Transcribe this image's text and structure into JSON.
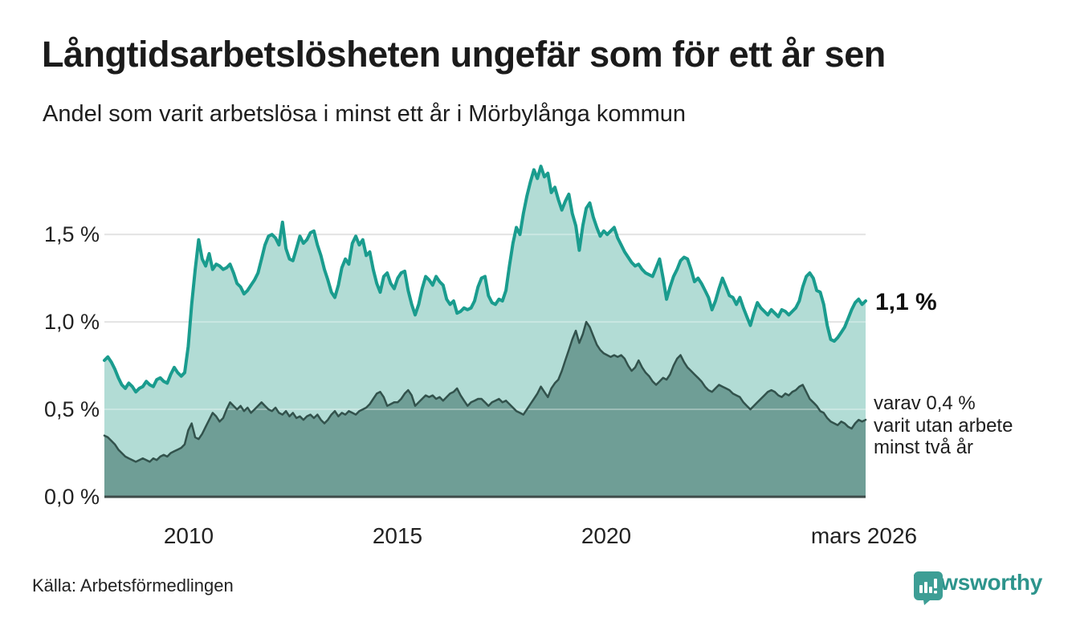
{
  "header": {
    "title": "Långtidsarbetslösheten ungefär som för ett år sen",
    "subtitle": "Andel som varit arbetslösa i minst ett år i Mörbylånga kommun"
  },
  "chart_data": {
    "type": "area",
    "title": "Långtidsarbetslösheten ungefär som för ett år sen",
    "subtitle": "Andel som varit arbetslösa i minst ett år i Mörbylånga kommun",
    "unit": "%",
    "x_start": 2008.042,
    "x_step": 0.08333,
    "xlim": [
      2008.042,
      2026.208
    ],
    "ylim": [
      0,
      1.9
    ],
    "grid": "horizontal",
    "legend_position": "none",
    "yticks": [
      {
        "value": 0.0,
        "label": "0,0 %"
      },
      {
        "value": 0.5,
        "label": "0,5 %"
      },
      {
        "value": 1.0,
        "label": "1,0 %"
      },
      {
        "value": 1.5,
        "label": "1,5 %"
      }
    ],
    "xticks": [
      {
        "value": 2010,
        "label": "2010"
      },
      {
        "value": 2015,
        "label": "2015"
      },
      {
        "value": 2020,
        "label": "2020"
      },
      {
        "value": 2026.1,
        "label": "mars 2026"
      }
    ],
    "series": [
      {
        "name": "Andel arbetslösa minst ett år",
        "line_color": "#1a9c8e",
        "fill_color": "#b2dcd5",
        "line_width": 4,
        "last_value_label": "1,1 %",
        "values": [
          0.78,
          0.8,
          0.77,
          0.73,
          0.68,
          0.64,
          0.62,
          0.65,
          0.63,
          0.6,
          0.62,
          0.63,
          0.66,
          0.64,
          0.63,
          0.67,
          0.68,
          0.66,
          0.65,
          0.7,
          0.74,
          0.71,
          0.69,
          0.71,
          0.86,
          1.1,
          1.3,
          1.47,
          1.36,
          1.32,
          1.39,
          1.3,
          1.33,
          1.32,
          1.3,
          1.31,
          1.33,
          1.28,
          1.22,
          1.2,
          1.16,
          1.18,
          1.21,
          1.24,
          1.28,
          1.36,
          1.44,
          1.49,
          1.5,
          1.48,
          1.44,
          1.57,
          1.42,
          1.36,
          1.35,
          1.42,
          1.49,
          1.45,
          1.47,
          1.51,
          1.52,
          1.44,
          1.38,
          1.3,
          1.24,
          1.17,
          1.14,
          1.21,
          1.31,
          1.36,
          1.33,
          1.45,
          1.49,
          1.44,
          1.47,
          1.38,
          1.4,
          1.3,
          1.22,
          1.17,
          1.26,
          1.28,
          1.22,
          1.19,
          1.25,
          1.28,
          1.29,
          1.18,
          1.1,
          1.04,
          1.1,
          1.19,
          1.26,
          1.24,
          1.21,
          1.26,
          1.23,
          1.21,
          1.13,
          1.1,
          1.12,
          1.05,
          1.06,
          1.08,
          1.07,
          1.08,
          1.12,
          1.2,
          1.25,
          1.26,
          1.15,
          1.11,
          1.1,
          1.13,
          1.12,
          1.18,
          1.32,
          1.45,
          1.54,
          1.5,
          1.62,
          1.72,
          1.8,
          1.87,
          1.82,
          1.89,
          1.83,
          1.85,
          1.74,
          1.77,
          1.7,
          1.64,
          1.69,
          1.73,
          1.62,
          1.55,
          1.41,
          1.55,
          1.65,
          1.68,
          1.6,
          1.54,
          1.49,
          1.52,
          1.5,
          1.52,
          1.54,
          1.48,
          1.44,
          1.4,
          1.37,
          1.34,
          1.32,
          1.33,
          1.3,
          1.28,
          1.27,
          1.26,
          1.31,
          1.36,
          1.25,
          1.13,
          1.2,
          1.26,
          1.3,
          1.35,
          1.37,
          1.36,
          1.3,
          1.23,
          1.25,
          1.22,
          1.18,
          1.14,
          1.07,
          1.12,
          1.19,
          1.25,
          1.2,
          1.15,
          1.14,
          1.1,
          1.14,
          1.08,
          1.03,
          0.98,
          1.05,
          1.11,
          1.08,
          1.06,
          1.04,
          1.07,
          1.05,
          1.03,
          1.07,
          1.06,
          1.04,
          1.06,
          1.08,
          1.12,
          1.2,
          1.26,
          1.28,
          1.25,
          1.18,
          1.17,
          1.1,
          0.98,
          0.9,
          0.89,
          0.91,
          0.94,
          0.97,
          1.02,
          1.07,
          1.11,
          1.13,
          1.1,
          1.12
        ]
      },
      {
        "name": "varav utan arbete minst två år",
        "line_color": "#32524c",
        "fill_color": "#6f9e96",
        "line_width": 2.5,
        "last_value_label": "varav 0,4 % varit utan arbete minst två år",
        "values": [
          0.35,
          0.34,
          0.32,
          0.3,
          0.27,
          0.25,
          0.23,
          0.22,
          0.21,
          0.2,
          0.21,
          0.22,
          0.21,
          0.2,
          0.22,
          0.21,
          0.23,
          0.24,
          0.23,
          0.25,
          0.26,
          0.27,
          0.28,
          0.3,
          0.38,
          0.42,
          0.34,
          0.33,
          0.36,
          0.4,
          0.44,
          0.48,
          0.46,
          0.43,
          0.45,
          0.5,
          0.54,
          0.52,
          0.5,
          0.52,
          0.49,
          0.51,
          0.48,
          0.5,
          0.52,
          0.54,
          0.52,
          0.5,
          0.49,
          0.51,
          0.48,
          0.47,
          0.49,
          0.46,
          0.48,
          0.45,
          0.46,
          0.44,
          0.46,
          0.47,
          0.45,
          0.47,
          0.44,
          0.42,
          0.44,
          0.47,
          0.49,
          0.46,
          0.48,
          0.47,
          0.49,
          0.48,
          0.47,
          0.49,
          0.5,
          0.51,
          0.53,
          0.56,
          0.59,
          0.6,
          0.57,
          0.52,
          0.53,
          0.54,
          0.54,
          0.56,
          0.59,
          0.61,
          0.58,
          0.52,
          0.54,
          0.56,
          0.58,
          0.57,
          0.58,
          0.56,
          0.57,
          0.55,
          0.57,
          0.59,
          0.6,
          0.62,
          0.58,
          0.55,
          0.52,
          0.54,
          0.55,
          0.56,
          0.56,
          0.54,
          0.52,
          0.54,
          0.55,
          0.56,
          0.54,
          0.55,
          0.53,
          0.51,
          0.49,
          0.48,
          0.47,
          0.5,
          0.53,
          0.56,
          0.59,
          0.63,
          0.6,
          0.57,
          0.62,
          0.65,
          0.67,
          0.72,
          0.78,
          0.84,
          0.9,
          0.95,
          0.88,
          0.93,
          1.0,
          0.97,
          0.92,
          0.87,
          0.84,
          0.82,
          0.81,
          0.8,
          0.81,
          0.8,
          0.81,
          0.79,
          0.75,
          0.72,
          0.74,
          0.78,
          0.74,
          0.71,
          0.69,
          0.66,
          0.64,
          0.66,
          0.68,
          0.67,
          0.7,
          0.75,
          0.79,
          0.81,
          0.77,
          0.74,
          0.72,
          0.7,
          0.68,
          0.66,
          0.63,
          0.61,
          0.6,
          0.62,
          0.64,
          0.63,
          0.62,
          0.61,
          0.59,
          0.58,
          0.57,
          0.54,
          0.52,
          0.5,
          0.52,
          0.54,
          0.56,
          0.58,
          0.6,
          0.61,
          0.6,
          0.58,
          0.57,
          0.59,
          0.58,
          0.6,
          0.61,
          0.63,
          0.64,
          0.6,
          0.56,
          0.54,
          0.52,
          0.49,
          0.48,
          0.45,
          0.43,
          0.42,
          0.41,
          0.43,
          0.42,
          0.4,
          0.39,
          0.42,
          0.44,
          0.43,
          0.44
        ]
      }
    ],
    "annotations": {
      "end_label_primary": "1,1 %",
      "end_label_secondary_line1": "varav 0,4 %",
      "end_label_secondary_line2": "varit utan arbete",
      "end_label_secondary_line3": "minst två år"
    },
    "colors": {
      "grid": "#d8d8d8",
      "baseline": "#3e4b49",
      "brand_teal": "#3d9e95"
    }
  },
  "footer": {
    "source": "Källa: Arbetsförmedlingen",
    "brand": "Newsworthy"
  }
}
